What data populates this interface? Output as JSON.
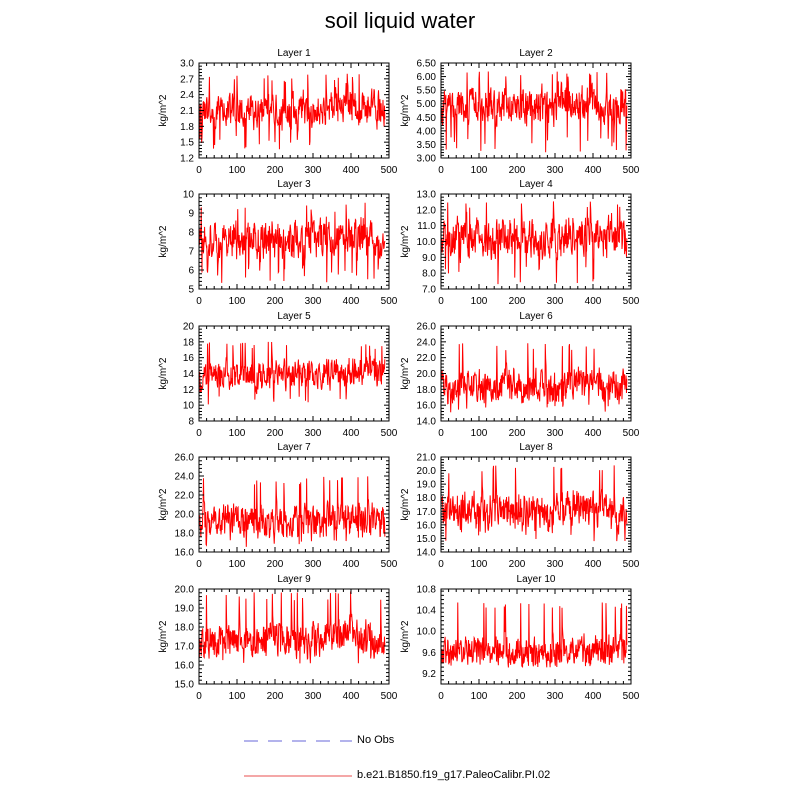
{
  "page": {
    "title": "soil liquid water"
  },
  "legend": {
    "items": [
      {
        "label": "No Obs",
        "color": "#9a9ae6",
        "style": "dashed"
      },
      {
        "label": "b.e21.B1850.f19_g17.PaleoCalibr.PI.02",
        "color": "#f08a8a",
        "style": "solid"
      }
    ]
  },
  "series_color": "#ff0000",
  "chart_data": [
    {
      "type": "line",
      "title": "Layer 1",
      "ylabel": "kg/m^2",
      "xlim": [
        0,
        500
      ],
      "xticks": [
        0,
        100,
        200,
        300,
        400,
        500
      ],
      "ylim": [
        1.2,
        3.0
      ],
      "yticks": [
        1.2,
        1.5,
        1.8,
        2.1,
        2.4,
        2.7,
        3.0
      ],
      "ytick_labels": [
        "1.2",
        "1.5",
        "1.8",
        "2.1",
        "2.4",
        "2.7",
        "3.0"
      ],
      "n_points": 500,
      "mean": 2.1,
      "low": 1.35,
      "high": 2.8
    },
    {
      "type": "line",
      "title": "Layer 2",
      "ylabel": "kg/m^2",
      "xlim": [
        0,
        500
      ],
      "xticks": [
        0,
        100,
        200,
        300,
        400,
        500
      ],
      "ylim": [
        3.0,
        6.5
      ],
      "yticks": [
        3.0,
        3.5,
        4.0,
        4.5,
        5.0,
        5.5,
        6.0,
        6.5
      ],
      "ytick_labels": [
        "3.00",
        "3.50",
        "4.00",
        "4.50",
        "5.00",
        "5.50",
        "6.00",
        "6.50"
      ],
      "n_points": 500,
      "mean": 4.9,
      "low": 3.2,
      "high": 6.2
    },
    {
      "type": "line",
      "title": "Layer 3",
      "ylabel": "kg/m^2",
      "xlim": [
        0,
        500
      ],
      "xticks": [
        0,
        100,
        200,
        300,
        400,
        500
      ],
      "ylim": [
        5,
        10
      ],
      "yticks": [
        5,
        6,
        7,
        8,
        9,
        10
      ],
      "ytick_labels": [
        "5",
        "6",
        "7",
        "8",
        "9",
        "10"
      ],
      "n_points": 500,
      "mean": 7.6,
      "low": 5.2,
      "high": 9.6
    },
    {
      "type": "line",
      "title": "Layer 4",
      "ylabel": "kg/m^2",
      "xlim": [
        0,
        500
      ],
      "xticks": [
        0,
        100,
        200,
        300,
        400,
        500
      ],
      "ylim": [
        7.0,
        13.0
      ],
      "yticks": [
        7,
        8,
        9,
        10,
        11,
        12,
        13
      ],
      "ytick_labels": [
        "7.0",
        "8.0",
        "9.0",
        "10.0",
        "11.0",
        "12.0",
        "13.0"
      ],
      "n_points": 500,
      "mean": 10.2,
      "low": 7.3,
      "high": 12.8
    },
    {
      "type": "line",
      "title": "Layer 5",
      "ylabel": "kg/m^2",
      "xlim": [
        0,
        500
      ],
      "xticks": [
        0,
        100,
        200,
        300,
        400,
        500
      ],
      "ylim": [
        8,
        20
      ],
      "yticks": [
        8,
        10,
        12,
        14,
        16,
        18,
        20
      ],
      "ytick_labels": [
        "8",
        "10",
        "12",
        "14",
        "16",
        "18",
        "20"
      ],
      "n_points": 500,
      "mean": 13.8,
      "low": 10.0,
      "high": 18.0
    },
    {
      "type": "line",
      "title": "Layer 6",
      "ylabel": "kg/m^2",
      "xlim": [
        0,
        500
      ],
      "xticks": [
        0,
        100,
        200,
        300,
        400,
        500
      ],
      "ylim": [
        14.0,
        26.0
      ],
      "yticks": [
        14,
        16,
        18,
        20,
        22,
        24,
        26
      ],
      "ytick_labels": [
        "14.0",
        "16.0",
        "18.0",
        "20.0",
        "22.0",
        "24.0",
        "26.0"
      ],
      "n_points": 500,
      "mean": 18.4,
      "low": 15.0,
      "high": 24.0
    },
    {
      "type": "line",
      "title": "Layer 7",
      "ylabel": "kg/m^2",
      "xlim": [
        0,
        500
      ],
      "xticks": [
        0,
        100,
        200,
        300,
        400,
        500
      ],
      "ylim": [
        16.0,
        26.0
      ],
      "yticks": [
        16,
        18,
        20,
        22,
        24,
        26
      ],
      "ytick_labels": [
        "16.0",
        "18.0",
        "20.0",
        "22.0",
        "24.0",
        "26.0"
      ],
      "n_points": 500,
      "mean": 19.2,
      "low": 16.5,
      "high": 24.0
    },
    {
      "type": "line",
      "title": "Layer 8",
      "ylabel": "kg/m^2",
      "xlim": [
        0,
        500
      ],
      "xticks": [
        0,
        100,
        200,
        300,
        400,
        500
      ],
      "ylim": [
        14.0,
        21.0
      ],
      "yticks": [
        14,
        15,
        16,
        17,
        18,
        19,
        20,
        21
      ],
      "ytick_labels": [
        "14.0",
        "15.0",
        "16.0",
        "17.0",
        "18.0",
        "19.0",
        "20.0",
        "21.0"
      ],
      "n_points": 500,
      "mean": 17.0,
      "low": 14.8,
      "high": 20.4
    },
    {
      "type": "line",
      "title": "Layer 9",
      "ylabel": "kg/m^2",
      "xlim": [
        0,
        500
      ],
      "xticks": [
        0,
        100,
        200,
        300,
        400,
        500
      ],
      "ylim": [
        15.0,
        20.0
      ],
      "yticks": [
        15,
        16,
        17,
        18,
        19,
        20
      ],
      "ytick_labels": [
        "15.0",
        "16.0",
        "17.0",
        "18.0",
        "19.0",
        "20.0"
      ],
      "n_points": 500,
      "mean": 17.3,
      "low": 16.0,
      "high": 19.9
    },
    {
      "type": "line",
      "title": "Layer 10",
      "ylabel": "kg/m^2",
      "xlim": [
        0,
        500
      ],
      "xticks": [
        0,
        100,
        200,
        300,
        400,
        500
      ],
      "ylim": [
        9.0,
        10.8
      ],
      "yticks": [
        9.2,
        9.6,
        10.0,
        10.4,
        10.8
      ],
      "ytick_labels": [
        "9.2",
        "9.6",
        "10.0",
        "10.4",
        "10.8"
      ],
      "n_points": 500,
      "mean": 9.6,
      "low": 9.3,
      "high": 10.55
    }
  ]
}
